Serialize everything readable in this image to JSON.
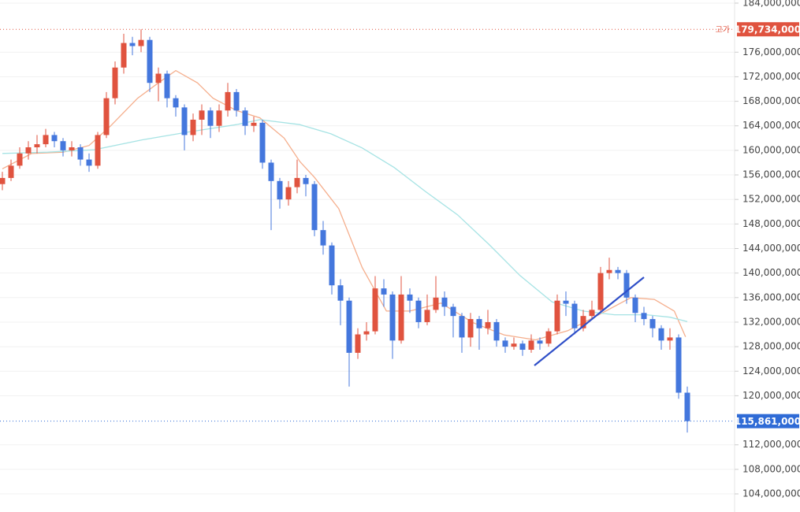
{
  "chart_data": {
    "type": "candlestick",
    "open": [
      154500000,
      155500000,
      157500000,
      159500000,
      160500000,
      161000000,
      162500000,
      161500000,
      160000000,
      160500000,
      158500000,
      157500000,
      162500000,
      168500000,
      173500000,
      177500000,
      177000000,
      178000000,
      171000000,
      172500000,
      168500000,
      167000000,
      162500000,
      165000000,
      166500000,
      164000000,
      166500000,
      169500000,
      166500000,
      164000000,
      164500000,
      158000000,
      155000000,
      152000000,
      154000000,
      155500000,
      154500000,
      147000000,
      144500000,
      138000000,
      135500000,
      127000000,
      130000000,
      130500000,
      137500000,
      136500000,
      129000000,
      136500000,
      135500000,
      132000000,
      134000000,
      136000000,
      134500000,
      133000000,
      129500000,
      132500000,
      131000000,
      132000000,
      129000000,
      128000000,
      128500000,
      127500000,
      129000000,
      128500000,
      130500000,
      135500000,
      135000000,
      131000000,
      133000000,
      134000000,
      140000000,
      140500000,
      140000000,
      136000000,
      133500000,
      132500000,
      131000000,
      129000000,
      129500000,
      120500000
    ],
    "high": [
      156500000,
      158500000,
      160500000,
      161500000,
      162500000,
      163500000,
      163000000,
      162000000,
      161500000,
      161000000,
      159500000,
      163000000,
      169500000,
      174500000,
      179000000,
      178500000,
      179734000,
      178500000,
      173500000,
      173000000,
      169000000,
      167500000,
      166000000,
      167500000,
      167000000,
      167500000,
      171000000,
      170000000,
      167000000,
      165500000,
      165000000,
      158500000,
      155500000,
      155000000,
      158500000,
      156000000,
      155000000,
      148500000,
      145000000,
      139000000,
      136000000,
      131000000,
      132000000,
      139500000,
      139000000,
      137000000,
      139500000,
      137500000,
      136000000,
      136500000,
      139500000,
      137000000,
      135000000,
      133500000,
      133500000,
      133000000,
      134000000,
      132500000,
      129500000,
      129500000,
      129000000,
      130000000,
      129500000,
      131000000,
      136500000,
      137000000,
      135500000,
      134000000,
      135500000,
      141000000,
      142500000,
      141000000,
      140500000,
      136500000,
      134500000,
      133000000,
      131500000,
      131000000,
      130000000,
      121500000
    ],
    "low": [
      153500000,
      155000000,
      157000000,
      158500000,
      159500000,
      160500000,
      160500000,
      159000000,
      159000000,
      157500000,
      156500000,
      157000000,
      162000000,
      167500000,
      172500000,
      175500000,
      176000000,
      169500000,
      168000000,
      167000000,
      165500000,
      160000000,
      161500000,
      162500000,
      162000000,
      163000000,
      165500000,
      165500000,
      162500000,
      163000000,
      157000000,
      147000000,
      150500000,
      151000000,
      153000000,
      152500000,
      146000000,
      143000000,
      136500000,
      131500000,
      121500000,
      126000000,
      129000000,
      130000000,
      134500000,
      126000000,
      128500000,
      133500000,
      131000000,
      131500000,
      133500000,
      133000000,
      129500000,
      127000000,
      128000000,
      127500000,
      130000000,
      128000000,
      127000000,
      127500000,
      126500000,
      127000000,
      127500000,
      128000000,
      130000000,
      133000000,
      130000000,
      130500000,
      132500000,
      133500000,
      139000000,
      139000000,
      135000000,
      132000000,
      131500000,
      129500000,
      127500000,
      127500000,
      119500000,
      114000000
    ],
    "close": [
      155500000,
      157500000,
      159500000,
      160500000,
      161000000,
      162500000,
      161500000,
      160000000,
      160500000,
      158500000,
      157500000,
      162500000,
      168500000,
      173500000,
      177500000,
      177000000,
      178000000,
      171000000,
      172500000,
      168500000,
      167000000,
      162500000,
      165000000,
      166500000,
      164000000,
      166500000,
      169500000,
      166500000,
      164000000,
      164500000,
      158000000,
      155000000,
      152000000,
      154000000,
      155500000,
      154500000,
      147000000,
      144500000,
      138000000,
      135500000,
      127000000,
      130000000,
      130500000,
      137500000,
      136500000,
      129000000,
      136500000,
      135500000,
      132000000,
      134000000,
      136000000,
      134500000,
      133000000,
      129500000,
      132500000,
      131000000,
      132000000,
      129000000,
      128000000,
      128500000,
      127500000,
      129000000,
      128500000,
      130500000,
      135500000,
      135000000,
      131000000,
      133000000,
      134000000,
      140000000,
      140500000,
      140000000,
      136000000,
      133500000,
      132500000,
      131000000,
      129000000,
      129500000,
      120500000,
      115861000
    ],
    "up_color": "#e0533f",
    "down_color": "#4477dd",
    "series": [
      {
        "color": "#f5ae8c",
        "x": [
          0,
          3.4,
          7,
          10,
          12.5,
          15.6,
          18,
          20,
          22.5,
          24.3,
          27,
          29.7,
          32.5,
          34.3,
          36,
          38.8,
          41.5,
          44.3,
          47,
          50.6,
          54.3,
          57.9,
          61.5,
          65.2,
          68.8,
          72.5,
          75.2,
          77.5,
          78.8
        ],
        "values": [
          157000000,
          159500000,
          159700000,
          160800000,
          164000000,
          168500000,
          171000000,
          173000000,
          171000000,
          168500000,
          166500000,
          165300000,
          162000000,
          158200000,
          155600000,
          150500000,
          140900000,
          133800000,
          133800000,
          135100000,
          131900000,
          129900000,
          129100000,
          130600000,
          133200000,
          136000000,
          135700000,
          133800000,
          129600000
        ]
      },
      {
        "color": "#a6e3e4",
        "x": [
          0,
          5.2,
          10.6,
          16.1,
          21.5,
          27,
          29.7,
          34.3,
          37.9,
          41.5,
          45.2,
          48.8,
          52.5,
          56.1,
          59.7,
          63.4,
          67,
          70.6,
          74.3,
          77,
          79
        ],
        "values": [
          159500000,
          159700000,
          160100000,
          161700000,
          163000000,
          164200000,
          165000000,
          164200000,
          162700000,
          160400000,
          157200000,
          153300000,
          149500000,
          144700000,
          139600000,
          135300000,
          133800000,
          133200000,
          133200000,
          132800000,
          132100000
        ]
      }
    ],
    "price_labels": [
      {
        "tag": "고가",
        "text": "179,734,000",
        "value": 179734000,
        "color": "#e0533f"
      },
      {
        "text": "115,861,000",
        "value": 115861000,
        "color": "#2f6bd6"
      }
    ],
    "ylim": [
      101050000,
      184510000
    ],
    "yticks": [
      {
        "value": 104000000,
        "label": "104,000,000"
      },
      {
        "value": 108000000,
        "label": "108,000,000"
      },
      {
        "value": 112000000,
        "label": "112,000,000"
      },
      {
        "value": 120000000,
        "label": "120,000,000"
      },
      {
        "value": 124000000,
        "label": "124,000,000"
      },
      {
        "value": 128000000,
        "label": "128,000,000"
      },
      {
        "value": 132000000,
        "label": "132,000,000"
      },
      {
        "value": 136000000,
        "label": "136,000,000"
      },
      {
        "value": 140000000,
        "label": "140,000,000"
      },
      {
        "value": 144000000,
        "label": "144,000,000"
      },
      {
        "value": 148000000,
        "label": "148,000,000"
      },
      {
        "value": 152000000,
        "label": "152,000,000"
      },
      {
        "value": 156000000,
        "label": "156,000,000"
      },
      {
        "value": 160000000,
        "label": "160,000,000"
      },
      {
        "value": 164000000,
        "label": "164,000,000"
      },
      {
        "value": 168000000,
        "label": "168,000,000"
      },
      {
        "value": 172000000,
        "label": "172,000,000"
      },
      {
        "value": 176000000,
        "label": "176,000,000"
      },
      {
        "value": 184000000,
        "label": "184,000,000"
      }
    ],
    "grid": true
  }
}
